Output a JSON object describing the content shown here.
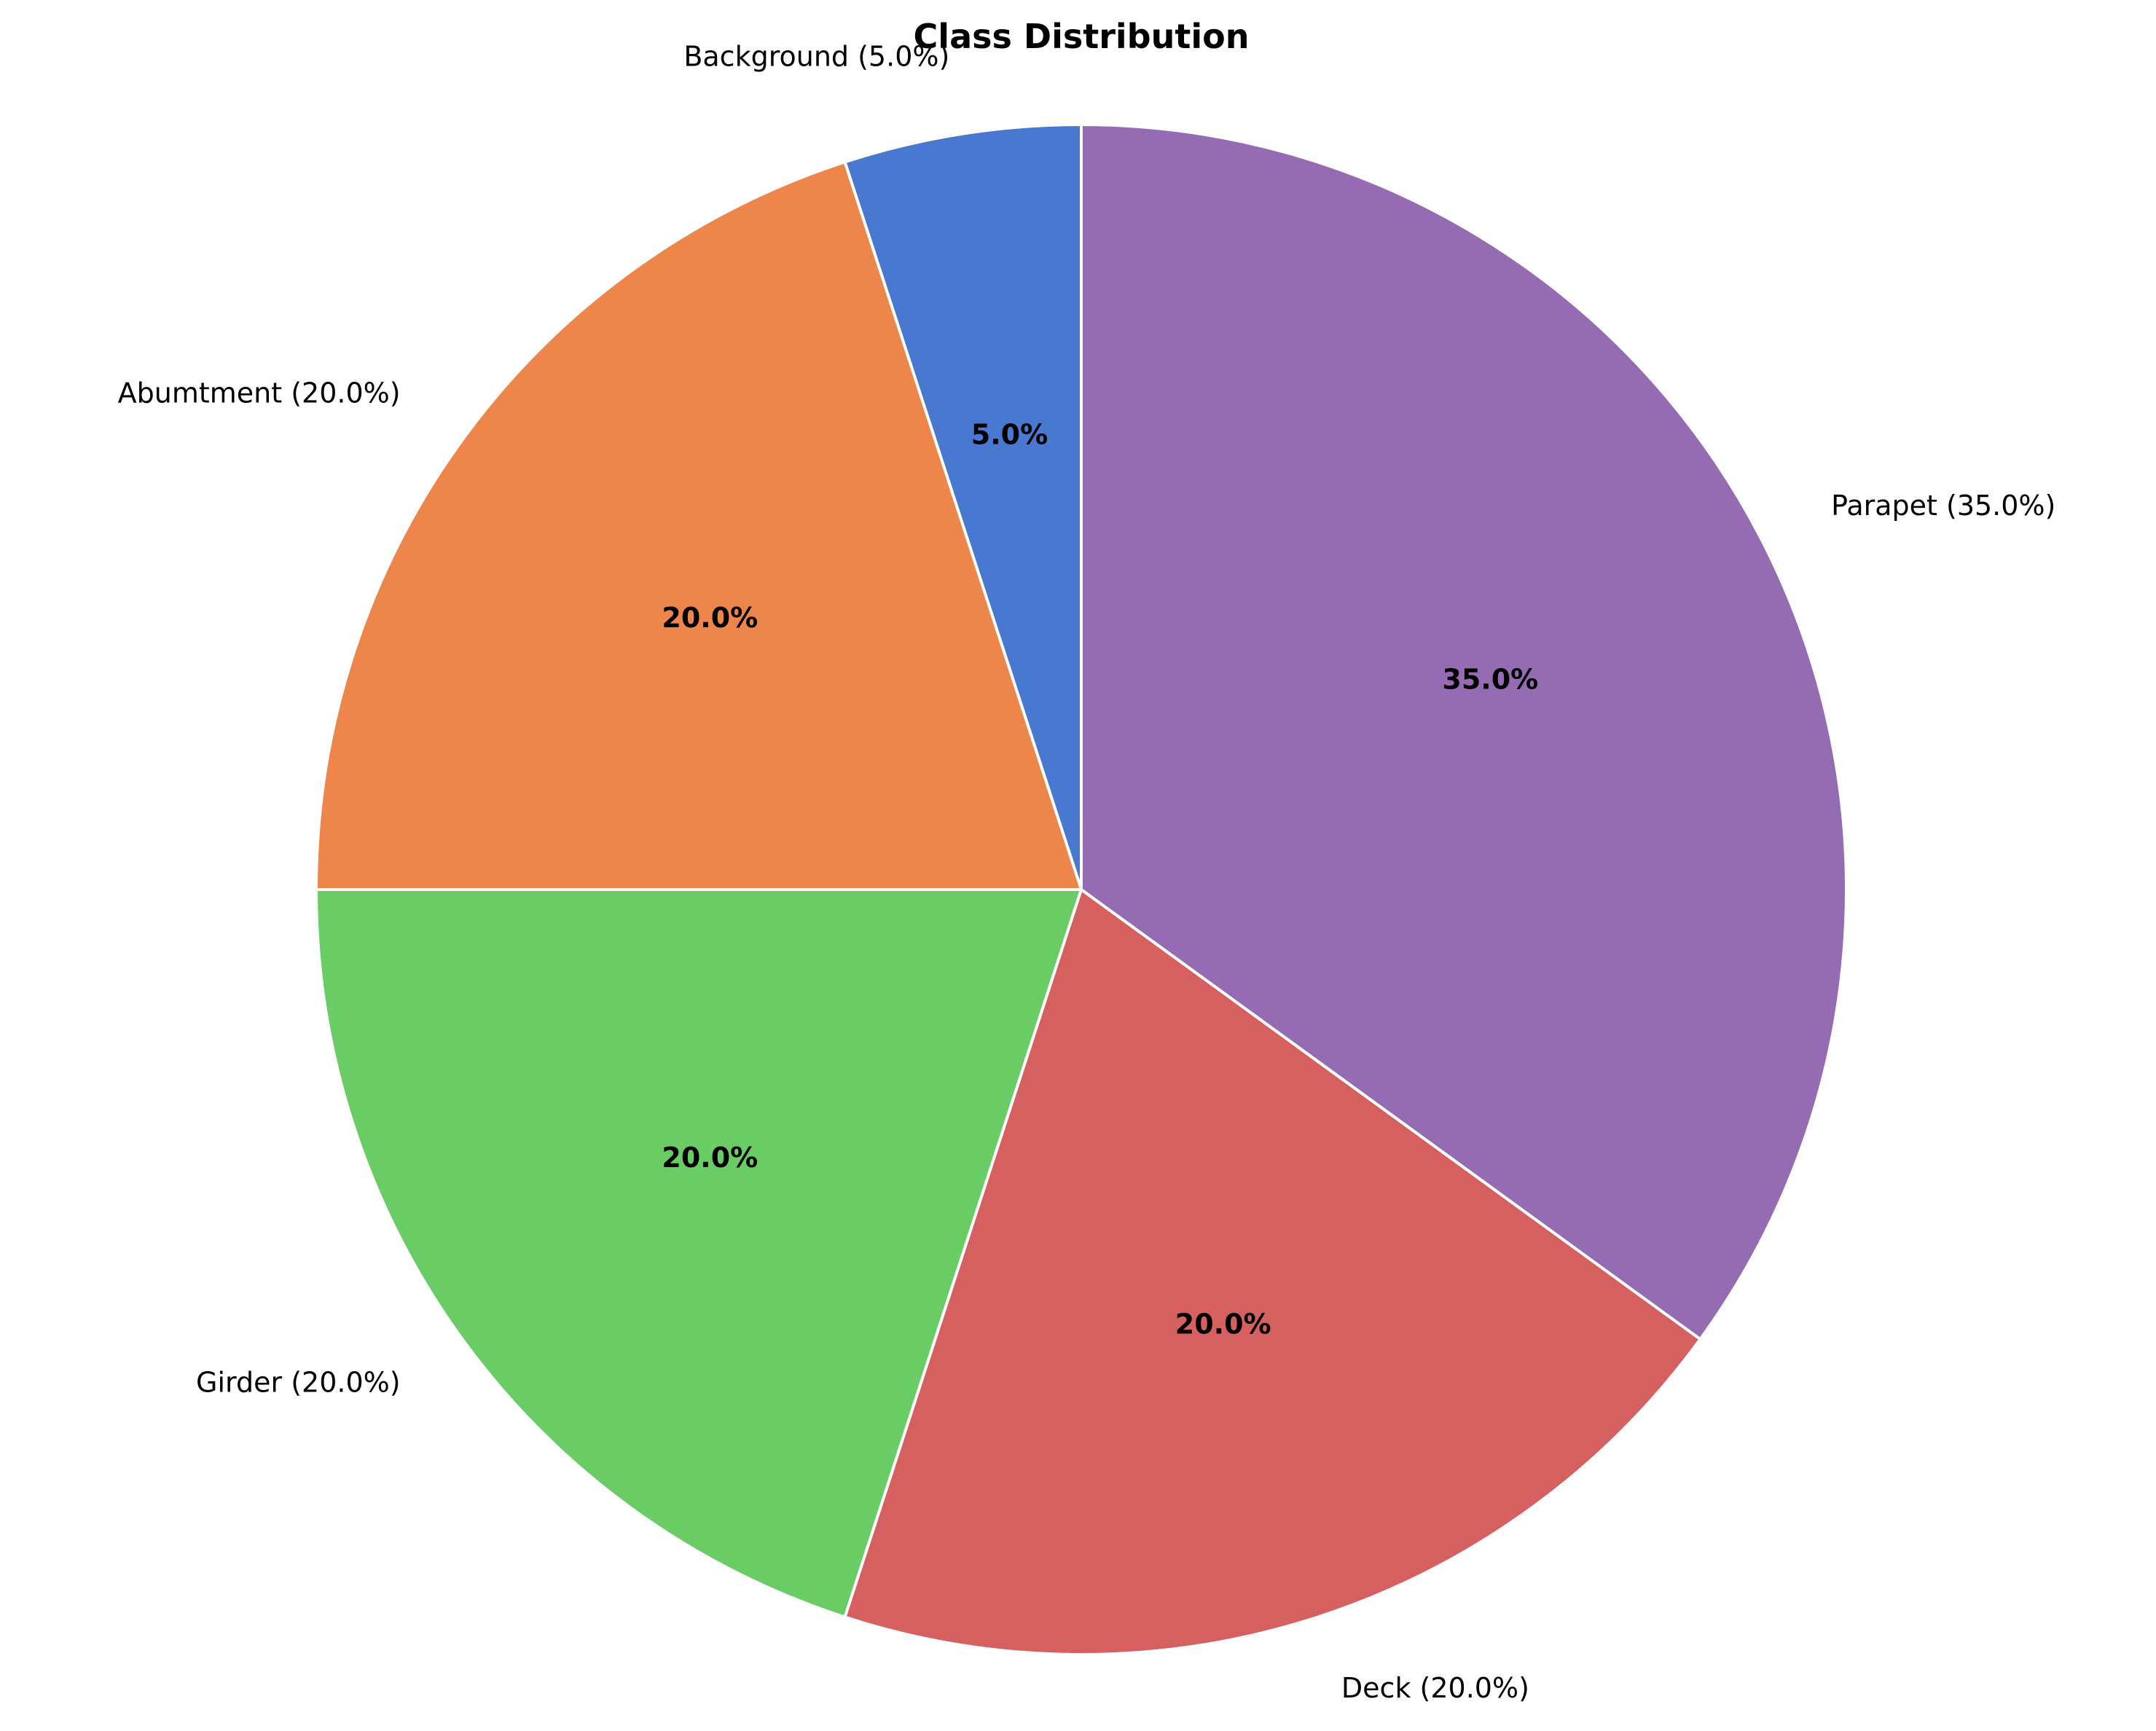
{
  "chart_data": {
    "type": "pie",
    "title": "Class Distribution",
    "start": "12 o'clock",
    "direction": "counterclockwise",
    "slices": [
      {
        "name": "Background",
        "value": 5.0,
        "label": "Background (5.0%)",
        "pct_label": "5.0%",
        "color": "#4878cf"
      },
      {
        "name": "Abumtment",
        "value": 20.0,
        "label": "Abumtment (20.0%)",
        "pct_label": "20.0%",
        "color": "#ee854a"
      },
      {
        "name": "Girder",
        "value": 20.0,
        "label": "Girder (20.0%)",
        "pct_label": "20.0%",
        "color": "#6acc64"
      },
      {
        "name": "Deck",
        "value": 20.0,
        "label": "Deck (20.0%)",
        "pct_label": "20.0%",
        "color": "#d65f5f"
      },
      {
        "name": "Parapet",
        "value": 35.0,
        "label": "Parapet (35.0%)",
        "pct_label": "35.0%",
        "color": "#956cb4"
      }
    ]
  }
}
